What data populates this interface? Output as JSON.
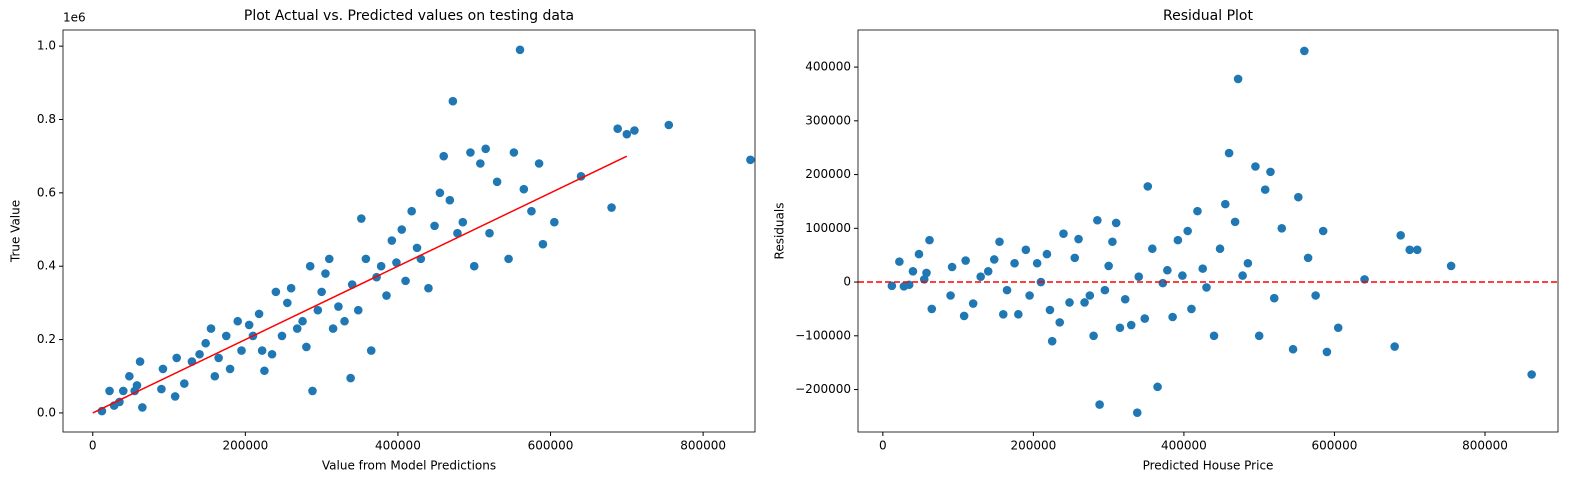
{
  "chart_data": [
    {
      "type": "scatter",
      "title": "Plot Actual vs. Predicted values on testing data",
      "xlabel": "Value from Model Predictions",
      "ylabel": "True Value",
      "y_offset_text": "1e6",
      "xlim": [
        -39000,
        868000
      ],
      "ylim": [
        -0.052,
        1.044
      ],
      "xticks": [
        0,
        200000,
        400000,
        600000,
        800000
      ],
      "yticks": [
        {
          "value": 0,
          "label": "0.0"
        },
        0.2,
        0.4,
        0.6,
        0.8,
        {
          "value": 1,
          "label": "1.0"
        }
      ],
      "x": [
        12000,
        22000,
        28000,
        35000,
        40000,
        48000,
        55000,
        58000,
        62000,
        65000,
        90000,
        92000,
        108000,
        110000,
        120000,
        130000,
        140000,
        148000,
        155000,
        160000,
        165000,
        175000,
        180000,
        190000,
        195000,
        205000,
        210000,
        218000,
        222000,
        225000,
        235000,
        240000,
        248000,
        255000,
        260000,
        268000,
        275000,
        280000,
        285000,
        288000,
        295000,
        300000,
        305000,
        310000,
        315000,
        322000,
        330000,
        338000,
        340000,
        348000,
        352000,
        358000,
        365000,
        372000,
        378000,
        385000,
        392000,
        398000,
        405000,
        410000,
        418000,
        425000,
        430000,
        440000,
        448000,
        455000,
        460000,
        468000,
        472000,
        478000,
        485000,
        495000,
        500000,
        508000,
        515000,
        520000,
        530000,
        545000,
        552000,
        560000,
        565000,
        575000,
        585000,
        590000,
        605000,
        640000,
        680000,
        688000,
        700000,
        710000,
        755000,
        862000
      ],
      "series": [
        {
          "color": "#1f77b4",
          "values": [
            0.005,
            0.06,
            0.02,
            0.03,
            0.06,
            0.1,
            0.06,
            0.075,
            0.14,
            0.015,
            0.065,
            0.12,
            0.045,
            0.15,
            0.08,
            0.14,
            0.16,
            0.19,
            0.23,
            0.1,
            0.15,
            0.21,
            0.12,
            0.25,
            0.17,
            0.24,
            0.21,
            0.27,
            0.17,
            0.115,
            0.16,
            0.33,
            0.21,
            0.3,
            0.34,
            0.23,
            0.25,
            0.18,
            0.4,
            0.06,
            0.28,
            0.33,
            0.38,
            0.42,
            0.23,
            0.29,
            0.25,
            0.095,
            0.35,
            0.28,
            0.53,
            0.42,
            0.17,
            0.37,
            0.4,
            0.32,
            0.47,
            0.41,
            0.5,
            0.36,
            0.55,
            0.45,
            0.42,
            0.34,
            0.51,
            0.6,
            0.7,
            0.58,
            0.85,
            0.49,
            0.52,
            0.71,
            0.4,
            0.68,
            0.72,
            0.49,
            0.63,
            0.42,
            0.71,
            0.99,
            0.61,
            0.55,
            0.68,
            0.46,
            0.52,
            0.645,
            0.56,
            0.775,
            0.76,
            0.77,
            0.785,
            0.69
          ]
        }
      ],
      "reference_line": {
        "x": [
          0,
          700000
        ],
        "y": [
          0,
          0.7
        ],
        "color": "#ff0000",
        "style": "solid"
      }
    },
    {
      "type": "scatter",
      "title": "Residual Plot",
      "xlabel": "Predicted House Price",
      "ylabel": "Residuals",
      "xlim": [
        -33000,
        897000
      ],
      "ylim": [
        -279000,
        469000
      ],
      "xticks": [
        0,
        200000,
        400000,
        600000,
        800000
      ],
      "yticks": [
        {
          "value": -200000,
          "label": "−200000"
        },
        {
          "value": -100000,
          "label": "−100000"
        },
        0,
        100000,
        200000,
        300000,
        400000
      ],
      "x": [
        12000,
        22000,
        28000,
        35000,
        40000,
        48000,
        55000,
        58000,
        62000,
        65000,
        90000,
        92000,
        108000,
        110000,
        120000,
        130000,
        140000,
        148000,
        155000,
        160000,
        165000,
        175000,
        180000,
        190000,
        195000,
        205000,
        210000,
        218000,
        222000,
        225000,
        235000,
        240000,
        248000,
        255000,
        260000,
        268000,
        275000,
        280000,
        285000,
        288000,
        295000,
        300000,
        305000,
        310000,
        315000,
        322000,
        330000,
        338000,
        340000,
        348000,
        352000,
        358000,
        365000,
        372000,
        378000,
        385000,
        392000,
        398000,
        405000,
        410000,
        418000,
        425000,
        430000,
        440000,
        448000,
        455000,
        460000,
        468000,
        472000,
        478000,
        485000,
        495000,
        500000,
        508000,
        515000,
        520000,
        530000,
        545000,
        552000,
        560000,
        565000,
        575000,
        585000,
        590000,
        605000,
        640000,
        680000,
        688000,
        700000,
        710000,
        755000,
        862000
      ],
      "series": [
        {
          "color": "#1f77b4",
          "values": [
            -7000,
            38000,
            -8000,
            -5000,
            20000,
            52000,
            5000,
            17000,
            78000,
            -50000,
            -25000,
            28000,
            -63000,
            40000,
            -40000,
            10000,
            20000,
            42000,
            75000,
            -60000,
            -15000,
            35000,
            -60000,
            60000,
            -25000,
            35000,
            0,
            52000,
            -52000,
            -110000,
            -75000,
            90000,
            -38000,
            45000,
            80000,
            -38000,
            -25000,
            -100000,
            115000,
            -228000,
            -15000,
            30000,
            75000,
            110000,
            -85000,
            -32000,
            -80000,
            -243000,
            10000,
            -68000,
            178000,
            62000,
            -195000,
            -2000,
            22000,
            -65000,
            78000,
            12000,
            95000,
            -50000,
            132000,
            25000,
            -10000,
            -100000,
            62000,
            145000,
            240000,
            112000,
            378000,
            12000,
            35000,
            215000,
            -100000,
            172000,
            205000,
            -30000,
            100000,
            -125000,
            158000,
            430000,
            45000,
            -25000,
            95000,
            -130000,
            -85000,
            5000,
            -120000,
            87000,
            60000,
            60000,
            30000,
            -172000
          ]
        }
      ],
      "reference_line": {
        "y": 0,
        "color": "#ff0000",
        "style": "dashed"
      }
    }
  ]
}
